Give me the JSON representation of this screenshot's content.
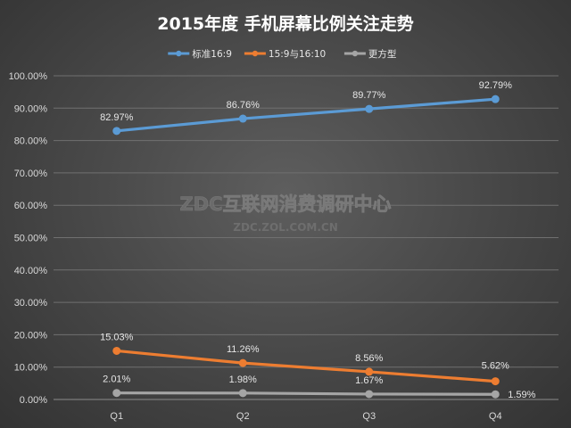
{
  "chart_data": {
    "type": "line",
    "title": "2015年度 手机屏幕比例关注走势",
    "categories": [
      "Q1",
      "Q2",
      "Q3",
      "Q4"
    ],
    "y_tick_labels": [
      "0.00%",
      "10.00%",
      "20.00%",
      "30.00%",
      "40.00%",
      "50.00%",
      "60.00%",
      "70.00%",
      "80.00%",
      "90.00%",
      "100.00%"
    ],
    "ylim": [
      0,
      100
    ],
    "grid": true,
    "legend": "top",
    "series": [
      {
        "name": "标准16:9",
        "values": [
          82.97,
          86.76,
          89.77,
          92.79
        ],
        "labels": [
          "82.97%",
          "86.76%",
          "89.77%",
          "92.79%"
        ],
        "color": "#5b9bd5"
      },
      {
        "name": "15:9与16:10",
        "values": [
          15.03,
          11.26,
          8.56,
          5.62
        ],
        "labels": [
          "15.03%",
          "11.26%",
          "8.56%",
          "5.62%"
        ],
        "color": "#ed7d31"
      },
      {
        "name": "更方型",
        "values": [
          2.01,
          1.98,
          1.67,
          1.59
        ],
        "labels": [
          "2.01%",
          "1.98%",
          "1.67%",
          "1.59%"
        ],
        "color": "#a5a5a5"
      }
    ]
  },
  "watermark": {
    "main": "ZDC互联网消费调研中心",
    "sub": "ZDC.ZOL.COM.CN"
  }
}
